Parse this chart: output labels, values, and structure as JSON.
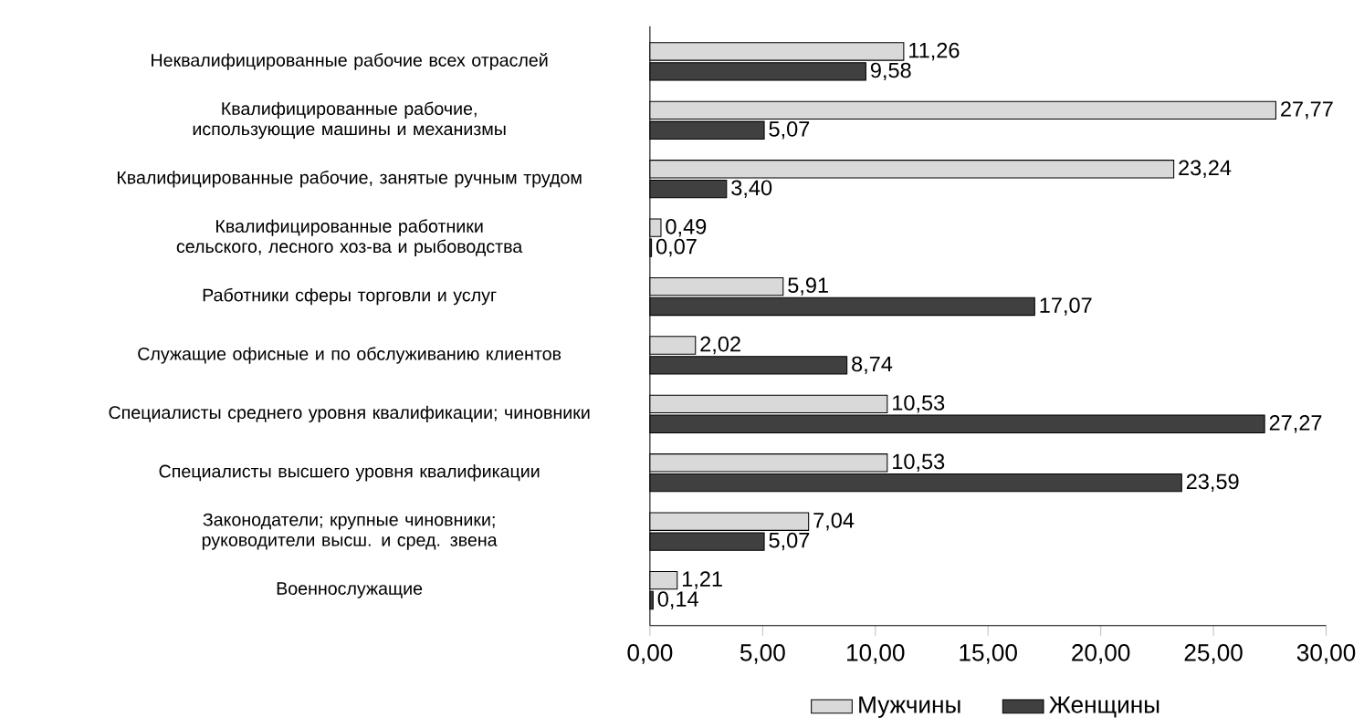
{
  "chart_data": {
    "type": "bar",
    "orientation": "horizontal",
    "categories": [
      "Неквалифицированные  рабочие всех отраслей",
      "Квалифицированные рабочие, использующие машины и механизмы",
      "Квалифицированные рабочие, занятые ручным трудом",
      "Квалифицированные работники сельского, лесного хоз-ва и рыбоводства",
      "Работники сферы торговли и услуг",
      "Служащие офисные и по обслуживанию клиентов",
      "Специалисты среднего уровня квалификации; чиновники",
      "Специалисты высшего  уровня квалификации",
      "Законодатели; крупные  чиновники; руководители высш. и сред. звена",
      "Военнослужащие"
    ],
    "series": [
      {
        "name": "Мужчины",
        "color": "#d9d9d9",
        "values": [
          11.26,
          27.77,
          23.24,
          0.49,
          5.91,
          2.02,
          10.53,
          10.53,
          7.04,
          1.21
        ],
        "value_labels": [
          "11,26",
          "27,77",
          "23,24",
          "0,49",
          "5,91",
          "2,02",
          "10,53",
          "10,53",
          "7,04",
          "1,21"
        ]
      },
      {
        "name": "Женщины",
        "color": "#404040",
        "values": [
          9.58,
          5.07,
          3.4,
          0.07,
          17.07,
          8.74,
          27.27,
          23.59,
          5.07,
          0.14
        ],
        "value_labels": [
          "9,58",
          "5,07",
          "3,40",
          "0,07",
          "17,07",
          "8,74",
          "27,27",
          "23,59",
          "5,07",
          "0,14"
        ]
      }
    ],
    "xlim": [
      0,
      30
    ],
    "xticks": [
      {
        "value": 0,
        "label": "0,00"
      },
      {
        "value": 5,
        "label": "5,00"
      },
      {
        "value": 10,
        "label": "10,00"
      },
      {
        "value": 15,
        "label": "15,00"
      },
      {
        "value": 20,
        "label": "20,00"
      },
      {
        "value": 25,
        "label": "25,00"
      },
      {
        "value": 30,
        "label": "30,00"
      }
    ],
    "legend": "bottom"
  }
}
